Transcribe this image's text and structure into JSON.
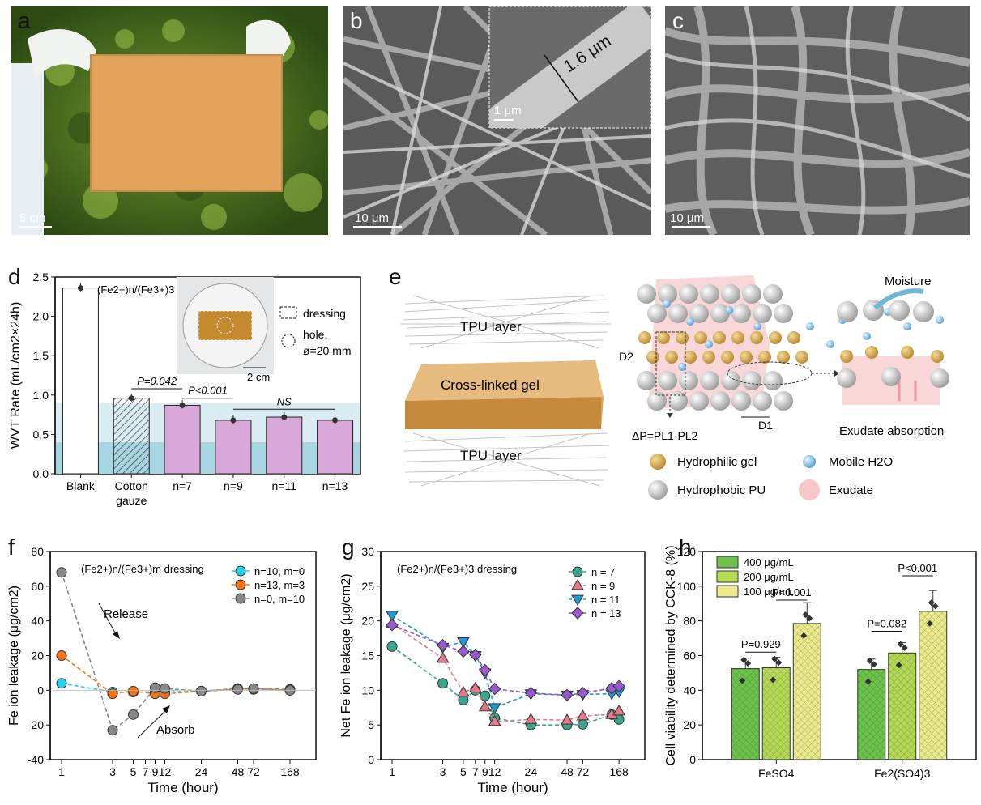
{
  "panels": {
    "a": {
      "label": "a",
      "scale": "5 cm"
    },
    "b": {
      "label": "b",
      "scale": "10 μm",
      "inset_scale": "1 μm",
      "inset_measure": "1.6 μm"
    },
    "c": {
      "label": "c",
      "scale": "10 μm"
    },
    "d": {
      "label": "d"
    },
    "e": {
      "label": "e"
    },
    "f": {
      "label": "f"
    },
    "g": {
      "label": "g"
    },
    "h": {
      "label": "h"
    }
  },
  "panel_e": {
    "layer_top": "TPU layer",
    "layer_mid": "Cross-linked gel",
    "layer_bottom": "TPU layer",
    "moisture": "Moisture",
    "d2": "D2",
    "d1": "D1",
    "dp": "ΔP=PL1-PL2",
    "exudate_absorption": "Exudate absorption",
    "legend": [
      "Hydrophilic gel",
      "Mobile H2O",
      "Hydrophobic PU",
      "Exudate"
    ]
  },
  "chart_data": [
    {
      "id": "d",
      "type": "bar",
      "title": "(Fe2+)n/(Fe3+)3",
      "ylabel": "WVT Rate (mL/cm2×24h)",
      "ylim": [
        0,
        2.5
      ],
      "yticks": [
        "0.0",
        "0.5",
        "1.0",
        "1.5",
        "2.0",
        "2.5"
      ],
      "categories": [
        "Blank",
        "Cotton gauze",
        "n=7",
        "n=9",
        "n=11",
        "n=13"
      ],
      "values": [
        2.36,
        0.96,
        0.87,
        0.68,
        0.72,
        0.68
      ],
      "colors": [
        "#ffffff",
        "hatch",
        "#d8a8d8",
        "#d8a8d8",
        "#d8a8d8",
        "#d8a8d8"
      ],
      "annotations": [
        "P=0.042",
        "P<0.001",
        "NS"
      ],
      "inset_legend": [
        "dressing",
        "hole,",
        "ø=20 mm"
      ],
      "inset_scale": "2 cm"
    },
    {
      "id": "f",
      "type": "line",
      "title": "(Fe2+)n/(Fe3+)m dressing",
      "xlabel": "Time (hour)",
      "ylabel": "Fe ion leakage (μg/cm2)",
      "ylim": [
        -40,
        80
      ],
      "yticks": [
        "-40",
        "-20",
        "0",
        "20",
        "40",
        "60",
        "80"
      ],
      "xticks": [
        "1",
        "3",
        "5",
        "7",
        "9",
        "12",
        "24",
        "48",
        "72",
        "168"
      ],
      "x": [
        1,
        3,
        5,
        9,
        12,
        24,
        48,
        72,
        168
      ],
      "series": [
        {
          "name": "n=10, m=0",
          "color": "#22d3ee",
          "values": [
            4,
            -1,
            -1,
            -1,
            -1,
            -0.5,
            1,
            0.5,
            0
          ]
        },
        {
          "name": "n=13, m=3",
          "color": "#f97316",
          "values": [
            20,
            -2,
            -0.5,
            -2,
            -2,
            -0.5,
            1,
            1,
            0.5
          ]
        },
        {
          "name": "n=0, m=10",
          "color": "#888888",
          "values": [
            68,
            -23,
            -14,
            1.5,
            1,
            -0.5,
            0.5,
            1,
            0
          ]
        }
      ],
      "annotations": [
        "Release",
        "Absorb"
      ]
    },
    {
      "id": "g",
      "type": "line",
      "title": "(Fe2+)n/(Fe3+)3 dressing",
      "xlabel": "Time (hour)",
      "ylabel": "Net Fe ion leakage (μg/cm2)",
      "ylim": [
        0,
        30
      ],
      "yticks": [
        "0",
        "5",
        "10",
        "15",
        "20",
        "25",
        "30"
      ],
      "xticks": [
        "1",
        "3",
        "5",
        "7",
        "9",
        "12",
        "24",
        "48",
        "72",
        "168"
      ],
      "x": [
        1,
        3,
        5,
        7,
        9,
        12,
        24,
        48,
        72,
        144,
        168
      ],
      "series": [
        {
          "name": "n = 7",
          "color": "#3aa58a",
          "marker": "circle",
          "values": [
            16.3,
            11.0,
            8.6,
            10.0,
            9.2,
            6.0,
            5.0,
            5.0,
            5.1,
            6.5,
            5.8
          ]
        },
        {
          "name": "n = 9",
          "color": "#e6788a",
          "marker": "triangle-up",
          "values": [
            19.6,
            14.6,
            9.7,
            10.3,
            7.6,
            5.5,
            5.8,
            5.7,
            6.3,
            6.5,
            7.0
          ]
        },
        {
          "name": "n = 11",
          "color": "#1e9bd7",
          "marker": "triangle-down",
          "values": [
            20.8,
            16.2,
            17.0,
            15.0,
            12.5,
            7.5,
            9.5,
            9.3,
            9.4,
            9.5,
            9.8
          ]
        },
        {
          "name": "n = 13",
          "color": "#9b59d0",
          "marker": "diamond",
          "values": [
            19.4,
            16.5,
            15.6,
            15.1,
            12.9,
            10.2,
            9.6,
            9.3,
            9.6,
            10.3,
            10.6
          ]
        }
      ]
    },
    {
      "id": "h",
      "type": "bar",
      "ylabel": "Cell viability determined by CCK-8 (%)",
      "ylim": [
        0,
        120
      ],
      "yticks": [
        "0",
        "20",
        "40",
        "60",
        "80",
        "100",
        "120"
      ],
      "categories": [
        "FeSO4",
        "Fe2(SO4)3"
      ],
      "series": [
        {
          "name": "400 μg/mL",
          "color": "#6cc24a",
          "values": [
            52.5,
            52
          ]
        },
        {
          "name": "200 μg/mL",
          "color": "#b5d957",
          "values": [
            53,
            61.5
          ]
        },
        {
          "name": "100 μg/mL",
          "color": "#ecea8c",
          "values": [
            78.5,
            85.5
          ]
        }
      ],
      "annotations": [
        "P=0.929",
        "P<0.001",
        "P=0.082",
        "P<0.001"
      ]
    }
  ]
}
